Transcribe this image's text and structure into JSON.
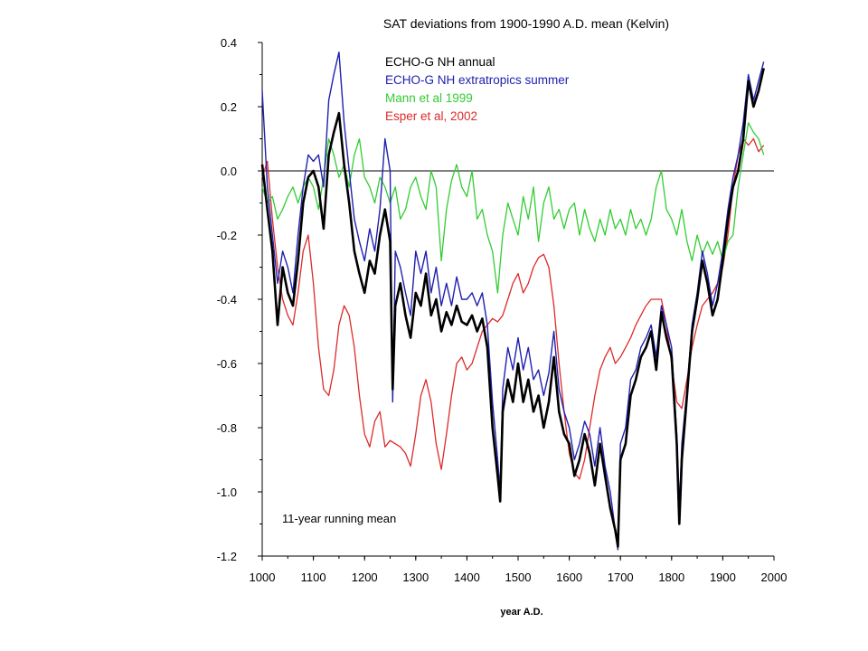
{
  "chart_data": {
    "type": "line",
    "title": "SAT deviations from 1900-1990 A.D. mean (Kelvin)",
    "xlabel": "year A.D.",
    "ylabel": "",
    "xlim": [
      1000,
      2000
    ],
    "ylim": [
      -1.2,
      0.4
    ],
    "xticks": [
      1000,
      1100,
      1200,
      1300,
      1400,
      1500,
      1600,
      1700,
      1800,
      1900,
      2000
    ],
    "yticks": [
      0.4,
      0.2,
      0.0,
      -0.2,
      -0.4,
      -0.6,
      -0.8,
      -1.0,
      -1.2
    ],
    "ytick_labels": [
      "0.4",
      "0.2",
      "0.0",
      "-0.2",
      "-0.4",
      "-0.6",
      "-0.8",
      "-1.0",
      "-1.2"
    ],
    "reference_line": 0.0,
    "annotation": "11-year running mean",
    "legend_position": "top-left",
    "series": [
      {
        "name": "ECHO-G NH annual",
        "color": "#000000",
        "x": [
          1000,
          1010,
          1020,
          1030,
          1040,
          1050,
          1060,
          1070,
          1080,
          1090,
          1100,
          1110,
          1120,
          1130,
          1140,
          1150,
          1160,
          1170,
          1180,
          1190,
          1200,
          1210,
          1220,
          1230,
          1240,
          1250,
          1255,
          1260,
          1270,
          1280,
          1290,
          1300,
          1310,
          1320,
          1330,
          1340,
          1350,
          1360,
          1370,
          1380,
          1390,
          1400,
          1410,
          1420,
          1430,
          1440,
          1450,
          1460,
          1465,
          1470,
          1480,
          1490,
          1500,
          1510,
          1520,
          1530,
          1540,
          1550,
          1560,
          1570,
          1580,
          1590,
          1600,
          1610,
          1620,
          1630,
          1640,
          1650,
          1660,
          1670,
          1680,
          1690,
          1695,
          1700,
          1710,
          1720,
          1730,
          1740,
          1750,
          1760,
          1770,
          1780,
          1790,
          1800,
          1810,
          1815,
          1820,
          1830,
          1840,
          1850,
          1860,
          1870,
          1880,
          1890,
          1900,
          1910,
          1920,
          1930,
          1940,
          1950,
          1960,
          1970,
          1980
        ],
        "values": [
          0.02,
          -0.12,
          -0.25,
          -0.48,
          -0.3,
          -0.38,
          -0.42,
          -0.28,
          -0.1,
          -0.02,
          0.0,
          -0.05,
          -0.18,
          0.05,
          0.12,
          0.18,
          0.02,
          -0.1,
          -0.25,
          -0.32,
          -0.38,
          -0.28,
          -0.32,
          -0.2,
          -0.12,
          -0.22,
          -0.68,
          -0.42,
          -0.35,
          -0.45,
          -0.52,
          -0.38,
          -0.42,
          -0.32,
          -0.45,
          -0.4,
          -0.5,
          -0.44,
          -0.48,
          -0.42,
          -0.47,
          -0.48,
          -0.45,
          -0.5,
          -0.46,
          -0.55,
          -0.8,
          -0.95,
          -1.03,
          -0.75,
          -0.65,
          -0.72,
          -0.6,
          -0.72,
          -0.65,
          -0.75,
          -0.7,
          -0.8,
          -0.72,
          -0.58,
          -0.75,
          -0.82,
          -0.85,
          -0.95,
          -0.9,
          -0.82,
          -0.88,
          -0.98,
          -0.85,
          -0.95,
          -1.05,
          -1.12,
          -1.17,
          -0.9,
          -0.85,
          -0.7,
          -0.65,
          -0.58,
          -0.55,
          -0.5,
          -0.62,
          -0.44,
          -0.52,
          -0.58,
          -0.85,
          -1.1,
          -0.9,
          -0.7,
          -0.5,
          -0.4,
          -0.28,
          -0.35,
          -0.45,
          -0.4,
          -0.28,
          -0.15,
          -0.05,
          0.0,
          0.1,
          0.28,
          0.2,
          0.25,
          0.32
        ]
      },
      {
        "name": "ECHO-G NH extratropics summer",
        "color": "#2020b0",
        "x": [
          1000,
          1010,
          1020,
          1030,
          1040,
          1050,
          1060,
          1070,
          1080,
          1090,
          1100,
          1110,
          1120,
          1130,
          1140,
          1150,
          1160,
          1170,
          1180,
          1190,
          1200,
          1210,
          1220,
          1230,
          1240,
          1250,
          1255,
          1260,
          1270,
          1280,
          1290,
          1300,
          1310,
          1320,
          1330,
          1340,
          1350,
          1360,
          1370,
          1380,
          1390,
          1400,
          1410,
          1420,
          1430,
          1440,
          1450,
          1460,
          1465,
          1470,
          1480,
          1490,
          1500,
          1510,
          1520,
          1530,
          1540,
          1550,
          1560,
          1570,
          1580,
          1590,
          1600,
          1610,
          1620,
          1630,
          1640,
          1650,
          1660,
          1670,
          1680,
          1690,
          1695,
          1700,
          1710,
          1720,
          1730,
          1740,
          1750,
          1760,
          1770,
          1780,
          1790,
          1800,
          1810,
          1815,
          1820,
          1830,
          1840,
          1850,
          1860,
          1870,
          1880,
          1890,
          1900,
          1910,
          1920,
          1930,
          1940,
          1950,
          1960,
          1970,
          1980
        ],
        "values": [
          0.25,
          -0.05,
          -0.2,
          -0.35,
          -0.25,
          -0.3,
          -0.38,
          -0.2,
          -0.05,
          0.05,
          0.03,
          0.05,
          -0.05,
          0.22,
          0.3,
          0.37,
          0.15,
          0.0,
          -0.15,
          -0.22,
          -0.28,
          -0.18,
          -0.25,
          -0.12,
          0.1,
          0.0,
          -0.72,
          -0.25,
          -0.3,
          -0.38,
          -0.45,
          -0.25,
          -0.32,
          -0.25,
          -0.38,
          -0.3,
          -0.42,
          -0.35,
          -0.42,
          -0.33,
          -0.4,
          -0.4,
          -0.38,
          -0.42,
          -0.38,
          -0.48,
          -0.72,
          -0.9,
          -1.0,
          -0.68,
          -0.55,
          -0.62,
          -0.52,
          -0.62,
          -0.55,
          -0.65,
          -0.62,
          -0.7,
          -0.63,
          -0.5,
          -0.68,
          -0.75,
          -0.8,
          -0.9,
          -0.85,
          -0.78,
          -0.82,
          -0.92,
          -0.8,
          -0.92,
          -1.0,
          -1.12,
          -1.18,
          -0.85,
          -0.8,
          -0.65,
          -0.62,
          -0.55,
          -0.52,
          -0.48,
          -0.58,
          -0.42,
          -0.48,
          -0.55,
          -0.82,
          -1.05,
          -0.85,
          -0.68,
          -0.48,
          -0.38,
          -0.25,
          -0.32,
          -0.42,
          -0.35,
          -0.25,
          -0.12,
          -0.02,
          0.05,
          0.15,
          0.3,
          0.22,
          0.28,
          0.34
        ]
      },
      {
        "name": "Mann et al 1999",
        "color": "#33cc33",
        "x": [
          1000,
          1010,
          1020,
          1030,
          1040,
          1050,
          1060,
          1070,
          1080,
          1090,
          1100,
          1110,
          1120,
          1130,
          1140,
          1150,
          1160,
          1170,
          1180,
          1190,
          1200,
          1210,
          1220,
          1230,
          1240,
          1250,
          1260,
          1270,
          1280,
          1290,
          1300,
          1310,
          1320,
          1330,
          1340,
          1350,
          1360,
          1370,
          1380,
          1390,
          1400,
          1410,
          1420,
          1430,
          1440,
          1450,
          1460,
          1470,
          1480,
          1490,
          1500,
          1510,
          1520,
          1530,
          1540,
          1550,
          1560,
          1570,
          1580,
          1590,
          1600,
          1610,
          1620,
          1630,
          1640,
          1650,
          1660,
          1670,
          1680,
          1690,
          1700,
          1710,
          1720,
          1730,
          1740,
          1750,
          1760,
          1770,
          1780,
          1790,
          1800,
          1810,
          1820,
          1830,
          1840,
          1850,
          1860,
          1870,
          1880,
          1890,
          1900,
          1910,
          1920,
          1930,
          1940,
          1950,
          1960,
          1970,
          1980
        ],
        "values": [
          -0.05,
          -0.1,
          -0.08,
          -0.15,
          -0.12,
          -0.08,
          -0.05,
          -0.1,
          -0.05,
          -0.02,
          -0.05,
          -0.12,
          -0.02,
          0.1,
          0.05,
          -0.02,
          0.02,
          -0.05,
          0.05,
          0.1,
          -0.02,
          -0.05,
          -0.1,
          -0.02,
          -0.05,
          -0.1,
          -0.05,
          -0.15,
          -0.12,
          -0.05,
          -0.02,
          -0.08,
          -0.12,
          0.0,
          -0.05,
          -0.28,
          -0.12,
          -0.03,
          0.02,
          -0.05,
          -0.08,
          0.0,
          -0.15,
          -0.12,
          -0.2,
          -0.25,
          -0.38,
          -0.2,
          -0.1,
          -0.15,
          -0.2,
          -0.08,
          -0.15,
          -0.05,
          -0.22,
          -0.1,
          -0.05,
          -0.15,
          -0.12,
          -0.18,
          -0.12,
          -0.1,
          -0.2,
          -0.12,
          -0.18,
          -0.22,
          -0.15,
          -0.2,
          -0.12,
          -0.18,
          -0.15,
          -0.2,
          -0.12,
          -0.18,
          -0.15,
          -0.2,
          -0.15,
          -0.05,
          0.0,
          -0.12,
          -0.15,
          -0.2,
          -0.12,
          -0.22,
          -0.28,
          -0.2,
          -0.26,
          -0.22,
          -0.26,
          -0.22,
          -0.28,
          -0.22,
          -0.2,
          -0.05,
          0.05,
          0.15,
          0.12,
          0.1,
          0.05
        ]
      },
      {
        "name": "Esper et al, 2002",
        "color": "#dd2a2a",
        "x": [
          1000,
          1010,
          1020,
          1030,
          1040,
          1050,
          1060,
          1070,
          1080,
          1090,
          1100,
          1110,
          1120,
          1130,
          1140,
          1150,
          1160,
          1170,
          1180,
          1190,
          1200,
          1210,
          1220,
          1230,
          1240,
          1250,
          1260,
          1270,
          1280,
          1290,
          1300,
          1310,
          1320,
          1330,
          1340,
          1350,
          1360,
          1370,
          1380,
          1390,
          1400,
          1410,
          1420,
          1430,
          1440,
          1450,
          1460,
          1470,
          1480,
          1490,
          1500,
          1510,
          1520,
          1530,
          1540,
          1550,
          1560,
          1570,
          1580,
          1590,
          1600,
          1610,
          1620,
          1630,
          1640,
          1650,
          1660,
          1670,
          1680,
          1690,
          1700,
          1710,
          1720,
          1730,
          1740,
          1750,
          1760,
          1770,
          1780,
          1790,
          1800,
          1810,
          1820,
          1830,
          1840,
          1850,
          1860,
          1870,
          1880,
          1890,
          1900,
          1910,
          1920,
          1930,
          1940,
          1950,
          1960,
          1970,
          1980
        ],
        "values": [
          -0.02,
          0.03,
          -0.15,
          -0.3,
          -0.4,
          -0.45,
          -0.48,
          -0.38,
          -0.25,
          -0.2,
          -0.35,
          -0.55,
          -0.68,
          -0.7,
          -0.62,
          -0.48,
          -0.42,
          -0.45,
          -0.55,
          -0.7,
          -0.82,
          -0.86,
          -0.78,
          -0.75,
          -0.86,
          -0.84,
          -0.85,
          -0.86,
          -0.88,
          -0.92,
          -0.82,
          -0.7,
          -0.65,
          -0.72,
          -0.85,
          -0.93,
          -0.82,
          -0.7,
          -0.6,
          -0.58,
          -0.62,
          -0.6,
          -0.55,
          -0.5,
          -0.48,
          -0.46,
          -0.47,
          -0.45,
          -0.4,
          -0.35,
          -0.32,
          -0.38,
          -0.35,
          -0.3,
          -0.27,
          -0.26,
          -0.3,
          -0.42,
          -0.6,
          -0.75,
          -0.88,
          -0.94,
          -0.96,
          -0.9,
          -0.8,
          -0.7,
          -0.62,
          -0.58,
          -0.55,
          -0.6,
          -0.58,
          -0.55,
          -0.52,
          -0.48,
          -0.45,
          -0.42,
          -0.4,
          -0.4,
          -0.4,
          -0.48,
          -0.6,
          -0.72,
          -0.74,
          -0.65,
          -0.55,
          -0.48,
          -0.42,
          -0.4,
          -0.38,
          -0.35,
          -0.3,
          -0.2,
          -0.05,
          0.05,
          0.1,
          0.08,
          0.1,
          0.06,
          0.08
        ]
      }
    ]
  }
}
